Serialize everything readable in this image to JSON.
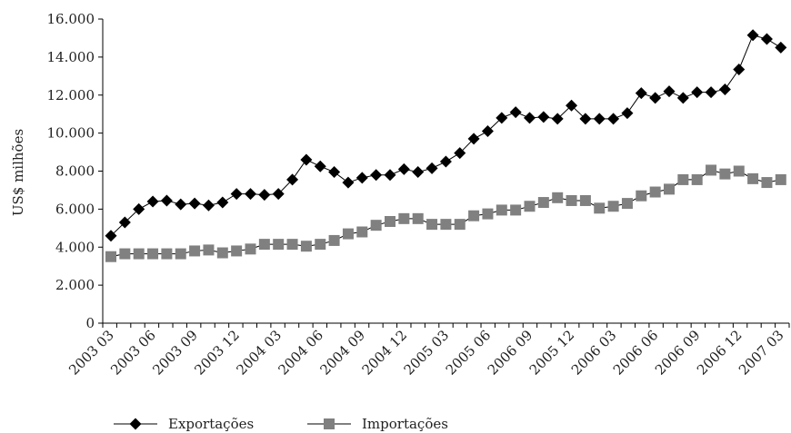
{
  "chart_data": {
    "type": "line",
    "title": "",
    "xlabel": "",
    "ylabel": "US$ milhões",
    "ylim": [
      0,
      16000
    ],
    "yticks": [
      0,
      2000,
      4000,
      6000,
      8000,
      10000,
      12000,
      14000,
      16000
    ],
    "ytick_labels": [
      "0",
      "2.000",
      "4.000",
      "6.000",
      "8.000",
      "10.000",
      "12.000",
      "14.000",
      "16.000"
    ],
    "xtick_labels": [
      "2003 03",
      "2003 06",
      "2003 09",
      "2003 12",
      "2004 03",
      "2004 06",
      "2004 09",
      "2004 12",
      "2005 03",
      "2005 06",
      "2006 09",
      "2005 12",
      "2006 03",
      "2006 06",
      "2006 09",
      "2006 12",
      "2007 03"
    ],
    "grid": false,
    "legend_position": "bottom",
    "series": [
      {
        "name": "Exportações",
        "marker": "diamond",
        "color": "#000000",
        "values": [
          4600,
          5300,
          6000,
          6400,
          6450,
          6250,
          6300,
          6200,
          6350,
          6800,
          6800,
          6750,
          6800,
          7550,
          8600,
          8250,
          7950,
          7400,
          7650,
          7800,
          7800,
          8100,
          7950,
          8150,
          8500,
          8950,
          9700,
          10100,
          10800,
          11100,
          10800,
          10850,
          10750,
          11450,
          10750,
          10750,
          10750,
          11050,
          12100,
          11850,
          12200,
          11850,
          12150,
          12150,
          12300,
          13350,
          15150,
          14950,
          14500
        ]
      },
      {
        "name": "Importações",
        "marker": "square",
        "color": "#808080",
        "values": [
          3500,
          3650,
          3650,
          3650,
          3650,
          3650,
          3800,
          3850,
          3700,
          3800,
          3900,
          4150,
          4150,
          4150,
          4050,
          4150,
          4350,
          4700,
          4800,
          5150,
          5350,
          5500,
          5500,
          5200,
          5200,
          5200,
          5650,
          5750,
          5950,
          5950,
          6150,
          6350,
          6600,
          6450,
          6450,
          6050,
          6150,
          6300,
          6700,
          6900,
          7050,
          7550,
          7550,
          8050,
          7850,
          8000,
          7600,
          7400,
          7550
        ]
      }
    ]
  }
}
